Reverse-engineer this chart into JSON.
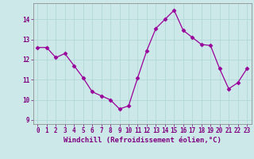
{
  "x": [
    0,
    1,
    2,
    3,
    4,
    5,
    6,
    7,
    8,
    9,
    10,
    11,
    12,
    13,
    14,
    15,
    16,
    17,
    18,
    19,
    20,
    21,
    22,
    23
  ],
  "y": [
    12.6,
    12.6,
    12.1,
    12.3,
    11.7,
    11.1,
    10.4,
    10.2,
    10.0,
    9.55,
    9.7,
    11.1,
    12.45,
    13.55,
    14.0,
    14.45,
    13.45,
    13.1,
    12.75,
    12.7,
    11.55,
    10.55,
    10.85,
    11.55
  ],
  "line_color": "#990099",
  "marker": "D",
  "marker_size": 2.5,
  "bg_color": "#cce8e8",
  "grid_color": "#b0d8d8",
  "xlabel": "Windchill (Refroidissement éolien,°C)",
  "xlim": [
    -0.5,
    23.5
  ],
  "ylim": [
    8.8,
    14.8
  ],
  "yticks": [
    9,
    10,
    11,
    12,
    13,
    14
  ],
  "xticks": [
    0,
    1,
    2,
    3,
    4,
    5,
    6,
    7,
    8,
    9,
    10,
    11,
    12,
    13,
    14,
    15,
    16,
    17,
    18,
    19,
    20,
    21,
    22,
    23
  ],
  "tick_fontsize": 5.5,
  "xlabel_fontsize": 6.5,
  "label_color": "#800080"
}
